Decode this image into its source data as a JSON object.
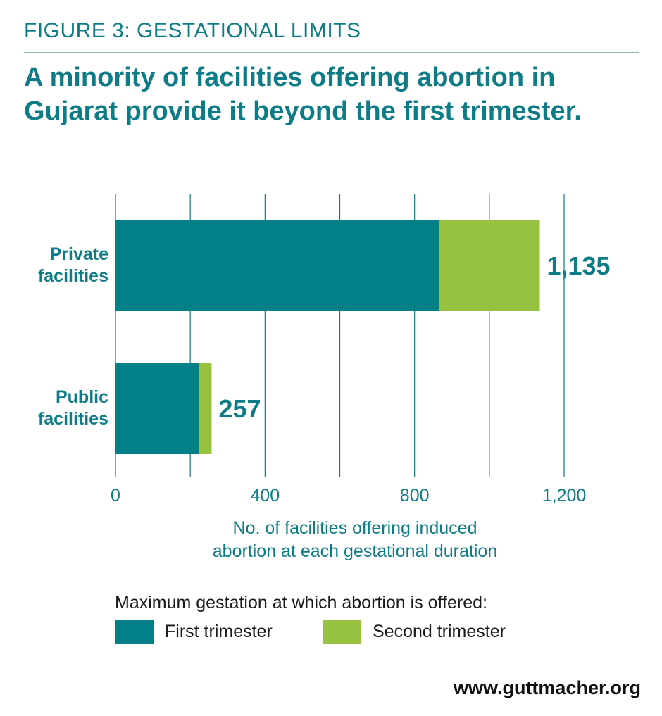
{
  "figure_label": "FIGURE 3: GESTATIONAL LIMITS",
  "headline": "A minority of facilities offering abortion in Gujarat provide it beyond the first trimester.",
  "colors": {
    "teal": "#0e7c86",
    "first_trimester": "#037f87",
    "second_trimester": "#97c23f",
    "gridline": "#0e7c86",
    "text": "#1a1a1a"
  },
  "chart_data": {
    "type": "bar",
    "orientation": "horizontal",
    "stacked": true,
    "categories": [
      "Private facilities",
      "Public facilities"
    ],
    "category_lines": [
      [
        "Private",
        "facilities"
      ],
      [
        "Public",
        "facilities"
      ]
    ],
    "series": [
      {
        "name": "First trimester",
        "values": [
          865,
          224
        ]
      },
      {
        "name": "Second trimester",
        "values": [
          270,
          33
        ]
      }
    ],
    "totals": [
      "1,135",
      "257"
    ],
    "xlim": [
      0,
      1200
    ],
    "xticks": [
      0,
      200,
      400,
      600,
      800,
      1000,
      1200
    ],
    "xtick_labels": [
      "0",
      "",
      "400",
      "",
      "800",
      "",
      "1,200"
    ],
    "xlabel": "No. of facilities offering induced abortion at each gestational duration",
    "xlabel_lines": [
      "No. of facilities offering induced",
      "abortion at each gestational duration"
    ],
    "grid": true,
    "legend_title": "Maximum gestation at which abortion is offered:",
    "legend_position": "bottom"
  },
  "source": "www.guttmacher.org"
}
